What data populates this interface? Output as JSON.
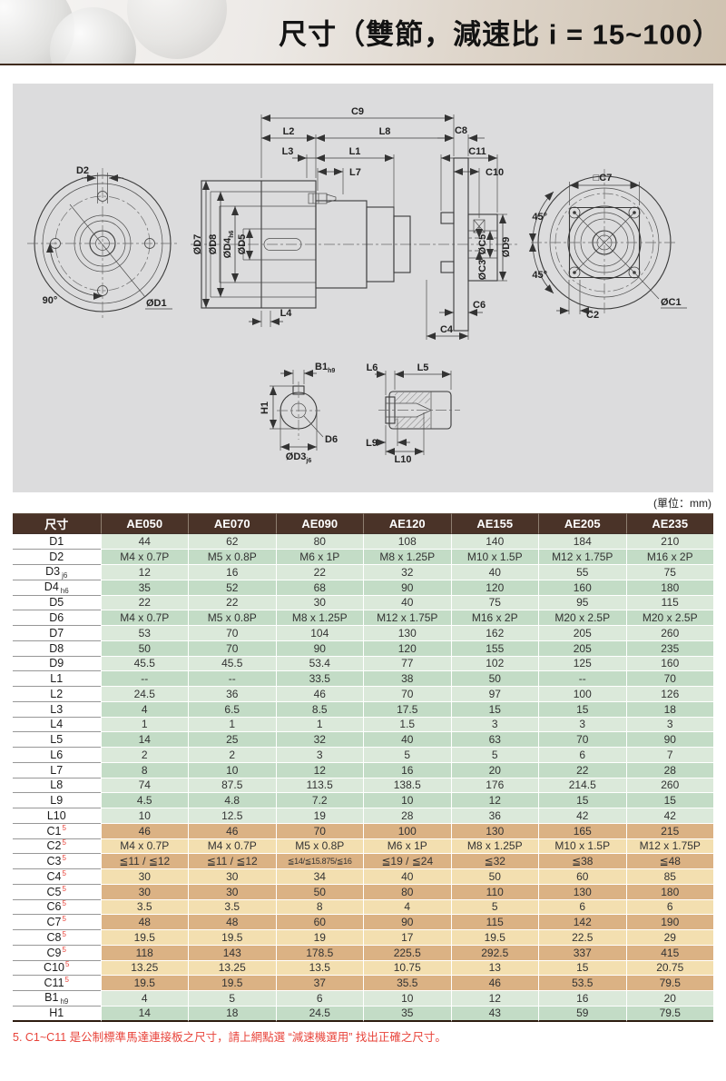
{
  "page": {
    "title": "尺寸（雙節，減速比 i = 15~100）",
    "unit_note": "(單位：mm)",
    "footnote": "5. C1~C11 是公制標準馬達連接板之尺寸，請上網點選 “減速機選用” 找出正確之尺寸。"
  },
  "colors": {
    "header_bg": "#4a3328",
    "header_text": "#ffffff",
    "row_green_light": "#dbe9da",
    "row_green_dark": "#c3dcc6",
    "row_tan_light": "#f3dfb0",
    "row_tan_dark": "#dbb284",
    "footnote_red": "#e8433a",
    "banner_line": "#3f2b1e",
    "drawing_bg": "#dcdcdd"
  },
  "drawing": {
    "labels": {
      "c9": "C9",
      "l2": "L2",
      "l8": "L8",
      "c8": "C8",
      "l3": "L3",
      "l1": "L1",
      "l7": "L7",
      "c11": "C11",
      "c10": "C10",
      "d2": "D2",
      "od1": "ØD1",
      "angle90": "90°",
      "od7": "ØD7",
      "od8": "ØD8",
      "od4": "ØD4",
      "od4_sub": "h6",
      "od5": "ØD5",
      "oc5": "ØC5",
      "oc3": "ØC3",
      "od9": "ØD9",
      "l4": "L4",
      "c6": "C6",
      "c4": "C4",
      "c7": "□C7",
      "angle45_top": "45°",
      "angle45_bottom": "45°",
      "oc1": "ØC1",
      "c2": "C2",
      "b1": "B1",
      "b1_sub": "h9",
      "h1": "H1",
      "d6": "D6",
      "od3": "ØD3",
      "od3_sub": "j6",
      "l6": "L6",
      "l5": "L5",
      "l9": "L9",
      "l10": "L10"
    }
  },
  "table": {
    "corner_label": "尺寸",
    "columns": [
      "AE050",
      "AE070",
      "AE090",
      "AE120",
      "AE155",
      "AE205",
      "AE235"
    ],
    "rows": [
      {
        "label": "D1",
        "group": "green",
        "values": [
          "44",
          "62",
          "80",
          "108",
          "140",
          "184",
          "210"
        ]
      },
      {
        "label": "D2",
        "group": "green",
        "values": [
          "M4 x 0.7P",
          "M5 x 0.8P",
          "M6 x 1P",
          "M8 x 1.25P",
          "M10 x 1.5P",
          "M12 x 1.75P",
          "M16 x 2P"
        ]
      },
      {
        "label": "D3",
        "sub": "j6",
        "group": "green",
        "values": [
          "12",
          "16",
          "22",
          "32",
          "40",
          "55",
          "75"
        ]
      },
      {
        "label": "D4",
        "sub": "h6",
        "group": "green",
        "values": [
          "35",
          "52",
          "68",
          "90",
          "120",
          "160",
          "180"
        ]
      },
      {
        "label": "D5",
        "group": "green",
        "values": [
          "22",
          "22",
          "30",
          "40",
          "75",
          "95",
          "115"
        ]
      },
      {
        "label": "D6",
        "group": "green",
        "values": [
          "M4 x 0.7P",
          "M5 x 0.8P",
          "M8 x 1.25P",
          "M12 x 1.75P",
          "M16 x 2P",
          "M20 x 2.5P",
          "M20 x 2.5P"
        ]
      },
      {
        "label": "D7",
        "group": "green",
        "values": [
          "53",
          "70",
          "104",
          "130",
          "162",
          "205",
          "260"
        ]
      },
      {
        "label": "D8",
        "group": "green",
        "values": [
          "50",
          "70",
          "90",
          "120",
          "155",
          "205",
          "235"
        ]
      },
      {
        "label": "D9",
        "group": "green",
        "values": [
          "45.5",
          "45.5",
          "53.4",
          "77",
          "102",
          "125",
          "160"
        ]
      },
      {
        "label": "L1",
        "group": "green",
        "values": [
          "--",
          "--",
          "33.5",
          "38",
          "50",
          "--",
          "70"
        ]
      },
      {
        "label": "L2",
        "group": "green",
        "values": [
          "24.5",
          "36",
          "46",
          "70",
          "97",
          "100",
          "126"
        ]
      },
      {
        "label": "L3",
        "group": "green",
        "values": [
          "4",
          "6.5",
          "8.5",
          "17.5",
          "15",
          "15",
          "18"
        ]
      },
      {
        "label": "L4",
        "group": "green",
        "values": [
          "1",
          "1",
          "1",
          "1.5",
          "3",
          "3",
          "3"
        ]
      },
      {
        "label": "L5",
        "group": "green",
        "values": [
          "14",
          "25",
          "32",
          "40",
          "63",
          "70",
          "90"
        ]
      },
      {
        "label": "L6",
        "group": "green",
        "values": [
          "2",
          "2",
          "3",
          "5",
          "5",
          "6",
          "7"
        ]
      },
      {
        "label": "L7",
        "group": "green",
        "values": [
          "8",
          "10",
          "12",
          "16",
          "20",
          "22",
          "28"
        ]
      },
      {
        "label": "L8",
        "group": "green",
        "values": [
          "74",
          "87.5",
          "113.5",
          "138.5",
          "176",
          "214.5",
          "260"
        ]
      },
      {
        "label": "L9",
        "group": "green",
        "values": [
          "4.5",
          "4.8",
          "7.2",
          "10",
          "12",
          "15",
          "15"
        ]
      },
      {
        "label": "L10",
        "group": "green",
        "values": [
          "10",
          "12.5",
          "19",
          "28",
          "36",
          "42",
          "42"
        ]
      },
      {
        "label": "C1",
        "sup": "5",
        "group": "tan",
        "values": [
          "46",
          "46",
          "70",
          "100",
          "130",
          "165",
          "215"
        ]
      },
      {
        "label": "C2",
        "sup": "5",
        "group": "tan",
        "values": [
          "M4 x 0.7P",
          "M4 x 0.7P",
          "M5 x 0.8P",
          "M6 x 1P",
          "M8 x 1.25P",
          "M10 x 1.5P",
          "M12 x 1.75P"
        ]
      },
      {
        "label": "C3",
        "sup": "5",
        "group": "tan",
        "values": [
          "≦11 / ≦12",
          "≦11 / ≦12",
          "≦14/≦15.875/≦16",
          "≦19 / ≦24",
          "≦32",
          "≦38",
          "≦48"
        ]
      },
      {
        "label": "C4",
        "sup": "5",
        "group": "tan",
        "values": [
          "30",
          "30",
          "34",
          "40",
          "50",
          "60",
          "85"
        ]
      },
      {
        "label": "C5",
        "sup": "5",
        "group": "tan",
        "values": [
          "30",
          "30",
          "50",
          "80",
          "110",
          "130",
          "180"
        ]
      },
      {
        "label": "C6",
        "sup": "5",
        "group": "tan",
        "values": [
          "3.5",
          "3.5",
          "8",
          "4",
          "5",
          "6",
          "6"
        ]
      },
      {
        "label": "C7",
        "sup": "5",
        "group": "tan",
        "values": [
          "48",
          "48",
          "60",
          "90",
          "115",
          "142",
          "190"
        ]
      },
      {
        "label": "C8",
        "sup": "5",
        "group": "tan",
        "values": [
          "19.5",
          "19.5",
          "19",
          "17",
          "19.5",
          "22.5",
          "29"
        ]
      },
      {
        "label": "C9",
        "sup": "5",
        "group": "tan",
        "values": [
          "118",
          "143",
          "178.5",
          "225.5",
          "292.5",
          "337",
          "415"
        ]
      },
      {
        "label": "C10",
        "sup": "5",
        "group": "tan",
        "values": [
          "13.25",
          "13.25",
          "13.5",
          "10.75",
          "13",
          "15",
          "20.75"
        ]
      },
      {
        "label": "C11",
        "sup": "5",
        "group": "tan",
        "values": [
          "19.5",
          "19.5",
          "37",
          "35.5",
          "46",
          "53.5",
          "79.5"
        ]
      },
      {
        "label": "B1",
        "sub": "h9",
        "group": "green",
        "values": [
          "4",
          "5",
          "6",
          "10",
          "12",
          "16",
          "20"
        ]
      },
      {
        "label": "H1",
        "group": "green",
        "values": [
          "14",
          "18",
          "24.5",
          "35",
          "43",
          "59",
          "79.5"
        ]
      }
    ]
  }
}
